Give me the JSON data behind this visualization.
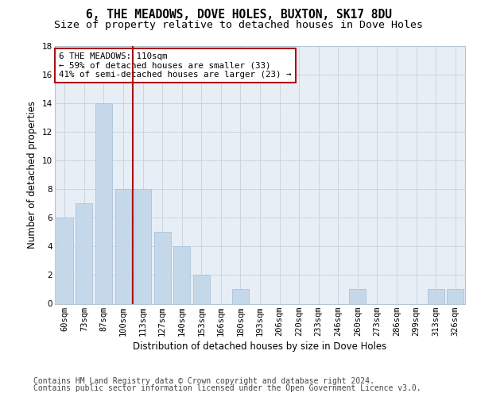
{
  "title": "6, THE MEADOWS, DOVE HOLES, BUXTON, SK17 8DU",
  "subtitle": "Size of property relative to detached houses in Dove Holes",
  "xlabel": "Distribution of detached houses by size in Dove Holes",
  "ylabel": "Number of detached properties",
  "categories": [
    "60sqm",
    "73sqm",
    "87sqm",
    "100sqm",
    "113sqm",
    "127sqm",
    "140sqm",
    "153sqm",
    "166sqm",
    "180sqm",
    "193sqm",
    "206sqm",
    "220sqm",
    "233sqm",
    "246sqm",
    "260sqm",
    "273sqm",
    "286sqm",
    "299sqm",
    "313sqm",
    "326sqm"
  ],
  "values": [
    6,
    7,
    14,
    8,
    8,
    5,
    4,
    2,
    0,
    1,
    0,
    0,
    0,
    0,
    0,
    1,
    0,
    0,
    0,
    1,
    1
  ],
  "bar_color": "#c5d8ea",
  "bar_edgecolor": "#a8c4dc",
  "vline_index": 4,
  "vline_color": "#aa1111",
  "annotation_line1": "6 THE MEADOWS: 110sqm",
  "annotation_line2": "← 59% of detached houses are smaller (33)",
  "annotation_line3": "41% of semi-detached houses are larger (23) →",
  "annotation_box_facecolor": "#ffffff",
  "annotation_box_edgecolor": "#aa1111",
  "ylim": [
    0,
    18
  ],
  "yticks": [
    0,
    2,
    4,
    6,
    8,
    10,
    12,
    14,
    16,
    18
  ],
  "grid_color": "#ccd4de",
  "background_color": "#e8eef5",
  "footer_line1": "Contains HM Land Registry data © Crown copyright and database right 2024.",
  "footer_line2": "Contains public sector information licensed under the Open Government Licence v3.0.",
  "title_fontsize": 10.5,
  "subtitle_fontsize": 9.5,
  "xlabel_fontsize": 8.5,
  "ylabel_fontsize": 8.5,
  "tick_fontsize": 7.5,
  "annotation_fontsize": 7.8,
  "footer_fontsize": 7
}
